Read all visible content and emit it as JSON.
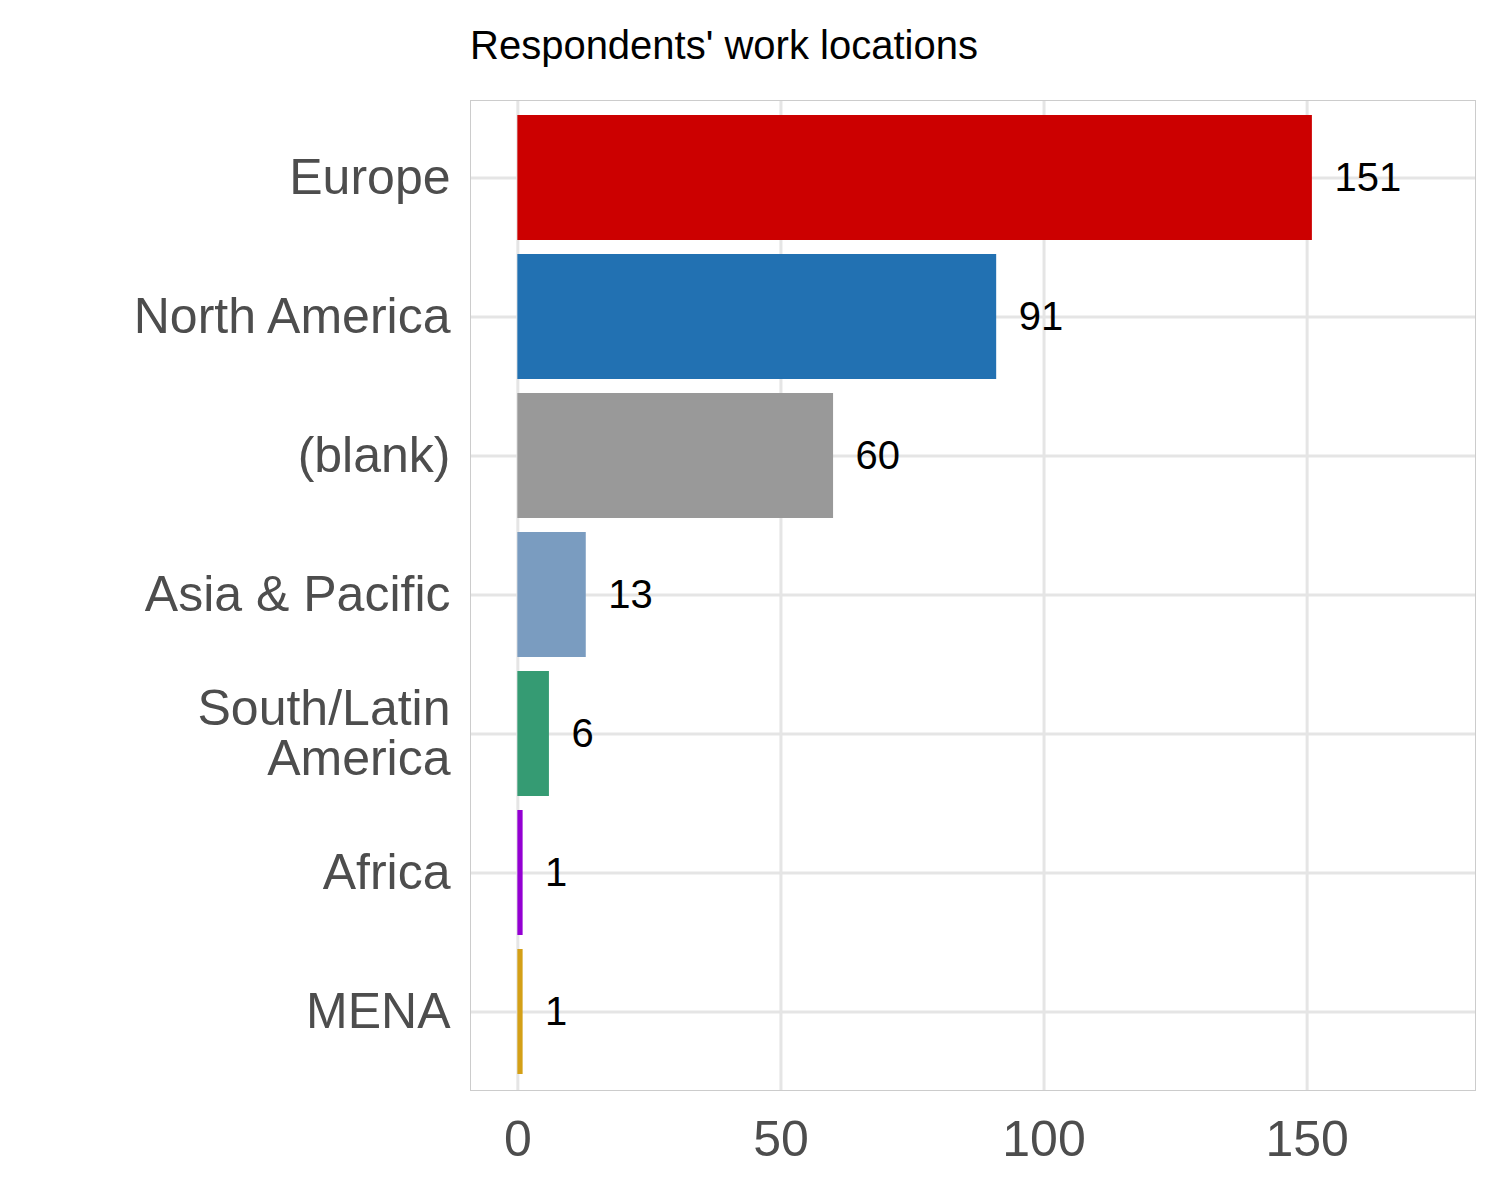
{
  "chart_data": {
    "type": "bar",
    "title": "Respondents' work locations",
    "orientation": "horizontal",
    "categories": [
      "Europe",
      "North America",
      "(blank)",
      "Asia & Pacific",
      "South/Latin\nAmerica",
      "Africa",
      "MENA"
    ],
    "values": [
      151,
      91,
      60,
      13,
      6,
      1,
      1
    ],
    "colors": [
      "#cc0000",
      "#2271b2",
      "#999999",
      "#7a9cc0",
      "#359b73",
      "#9400d3",
      "#d4a017"
    ],
    "xlim": [
      -9,
      182
    ],
    "xticks": [
      0,
      50,
      100,
      150
    ],
    "grid": true,
    "data_labels": true
  }
}
